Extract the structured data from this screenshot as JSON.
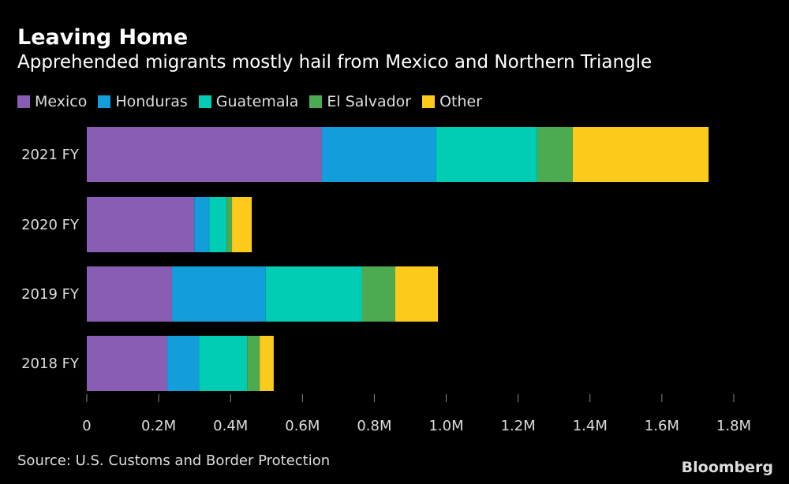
{
  "chart_data": {
    "type": "bar",
    "orientation": "horizontal-stacked",
    "title": "Leaving Home",
    "subtitle": "Apprehended migrants mostly hail from Mexico and Northern Triangle",
    "categories": [
      "2021 FY",
      "2020 FY",
      "2019 FY",
      "2018 FY"
    ],
    "series": [
      {
        "name": "Mexico",
        "color": "#8a5db5",
        "values": [
          0.654,
          0.299,
          0.237,
          0.224
        ]
      },
      {
        "name": "Honduras",
        "color": "#139edb",
        "values": [
          0.318,
          0.042,
          0.261,
          0.088
        ]
      },
      {
        "name": "Guatemala",
        "color": "#00cdb4",
        "values": [
          0.281,
          0.048,
          0.268,
          0.134
        ]
      },
      {
        "name": "El Salvador",
        "color": "#4caa50",
        "values": [
          0.099,
          0.015,
          0.092,
          0.035
        ]
      },
      {
        "name": "Other",
        "color": "#fcca1b",
        "values": [
          0.378,
          0.055,
          0.119,
          0.039
        ]
      }
    ],
    "xlim": [
      0,
      1.8
    ],
    "xticks": [
      0,
      0.2,
      0.4,
      0.6,
      0.8,
      1.0,
      1.2,
      1.4,
      1.6,
      1.8
    ],
    "xtick_labels": [
      "0",
      "0.2M",
      "0.4M",
      "0.6M",
      "0.8M",
      "1.0M",
      "1.2M",
      "1.4M",
      "1.6M",
      "1.8M"
    ],
    "units": "millions of apprehensions",
    "legend_position": "top-left",
    "grid": false
  },
  "source": "Source: U.S. Customs and Border Protection",
  "brand": "Bloomberg"
}
